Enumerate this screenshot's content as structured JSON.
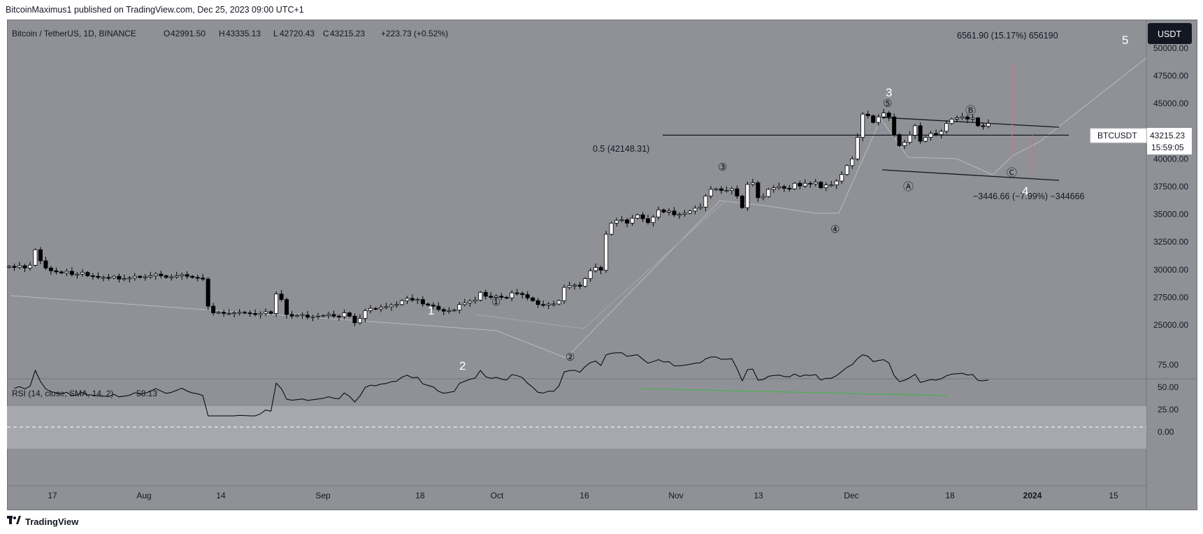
{
  "header": {
    "publisher": "BitcoinMaximus1 published on TradingView.com, Dec 25, 2023 09:00 UTC+1"
  },
  "footer": {
    "brand": "TradingView"
  },
  "legend": {
    "symbol": "Bitcoin / TetherUS, 1D, BINANCE",
    "o_label": "O",
    "o": "42991.50",
    "h_label": "H",
    "h": "43335.13",
    "l_label": "L",
    "l": "42720.43",
    "c_label": "C",
    "c": "43215.23",
    "change": "+223.73 (+0.52%)"
  },
  "currency_button": "USDT",
  "price_tag": {
    "symbol": "BTCUSDT",
    "price": "43215.23",
    "countdown": "15:59:05"
  },
  "annotations": {
    "fib": "0.5 (42148.31)",
    "measure_up": "6561.90 (15.17%) 656190",
    "measure_down": "−3446.66 (−7.99%) −344666",
    "waves_major": [
      "1",
      "2",
      "3",
      "4",
      "5"
    ],
    "waves_minor": [
      "①",
      "②",
      "③",
      "④",
      "⑤"
    ],
    "waves_corrective": [
      "Ⓐ",
      "Ⓑ",
      "Ⓒ"
    ]
  },
  "rsi": {
    "label": "RSI (14, close, SMA, 14, 2)",
    "value": "58.13"
  },
  "colors": {
    "background": "#8f9197",
    "rsi_band": "#a5a7ad",
    "up": "#ffffff",
    "down": "#000000",
    "divergence": "#4caf50",
    "wave_label": "#ffffff"
  },
  "chart_data": [
    {
      "type": "candlestick",
      "title": "Bitcoin / TetherUS, 1D, BINANCE",
      "ylabel": "USDT",
      "ylim": [
        23500,
        52000
      ],
      "y_ticks": [
        "50000.00",
        "47500.00",
        "45000.00",
        "42500.00",
        "40000.00",
        "37500.00",
        "35000.00",
        "32500.00",
        "30000.00",
        "27500.00",
        "25000.00"
      ],
      "x_ticks": [
        "17",
        "Aug",
        "14",
        "Sep",
        "18",
        "Oct",
        "16",
        "Nov",
        "13",
        "Dec",
        "18",
        "2024",
        "15"
      ],
      "fib_level": 42148.31,
      "closes": [
        30300,
        30200,
        30350,
        30150,
        30400,
        31800,
        30800,
        30150,
        29900,
        29800,
        29700,
        29850,
        29550,
        29600,
        29750,
        29450,
        29400,
        29300,
        29300,
        29250,
        29400,
        29150,
        29200,
        29250,
        29400,
        29300,
        29350,
        29450,
        29600,
        29450,
        29300,
        29350,
        29450,
        29550,
        29400,
        29300,
        29250,
        29150,
        26700,
        26100,
        26150,
        26050,
        26050,
        26100,
        26150,
        26100,
        26050,
        25950,
        26050,
        26200,
        26050,
        27800,
        27300,
        25950,
        25800,
        25850,
        25900,
        25700,
        25750,
        25800,
        25850,
        25950,
        25800,
        25750,
        26100,
        25800,
        25200,
        25600,
        26300,
        26500,
        26450,
        26600,
        26650,
        26800,
        26850,
        27200,
        27400,
        27250,
        27300,
        26900,
        26800,
        26700,
        26400,
        26250,
        26300,
        26350,
        26850,
        27000,
        27150,
        27250,
        27950,
        27600,
        27500,
        27600,
        27500,
        27450,
        27900,
        27850,
        27750,
        27450,
        27200,
        26850,
        26800,
        26900,
        26900,
        27200,
        28400,
        28550,
        28600,
        28500,
        29200,
        29900,
        30200,
        29950,
        33200,
        34200,
        34450,
        34500,
        34200,
        34650,
        34950,
        34600,
        34250,
        34750,
        35400,
        35200,
        35300,
        34950,
        35000,
        35100,
        35300,
        35550,
        35650,
        36650,
        37250,
        37300,
        37150,
        37150,
        37300,
        36650,
        35600,
        37700,
        37850,
        36500,
        36600,
        37250,
        37400,
        37500,
        37350,
        37300,
        37800,
        37550,
        37800,
        37750,
        37900,
        37400,
        37650,
        37650,
        38000,
        38600,
        39400,
        40000,
        41950,
        44050,
        43900,
        43300,
        43800,
        44150,
        43800,
        42200,
        41200,
        41500,
        42150,
        43000,
        41600,
        41950,
        42300,
        42200,
        42500,
        43200,
        43600,
        43700,
        43800,
        43600,
        43700,
        43000,
        42950,
        43215
      ]
    },
    {
      "type": "line",
      "title": "RSI (14, close, SMA, 14, 2)",
      "ylim": [
        -10,
        100
      ],
      "y_ticks": [
        "75.00",
        "50.00",
        "25.00",
        "0.00"
      ],
      "band": [
        30,
        70
      ],
      "middle": 50,
      "last": 58.13
    }
  ]
}
